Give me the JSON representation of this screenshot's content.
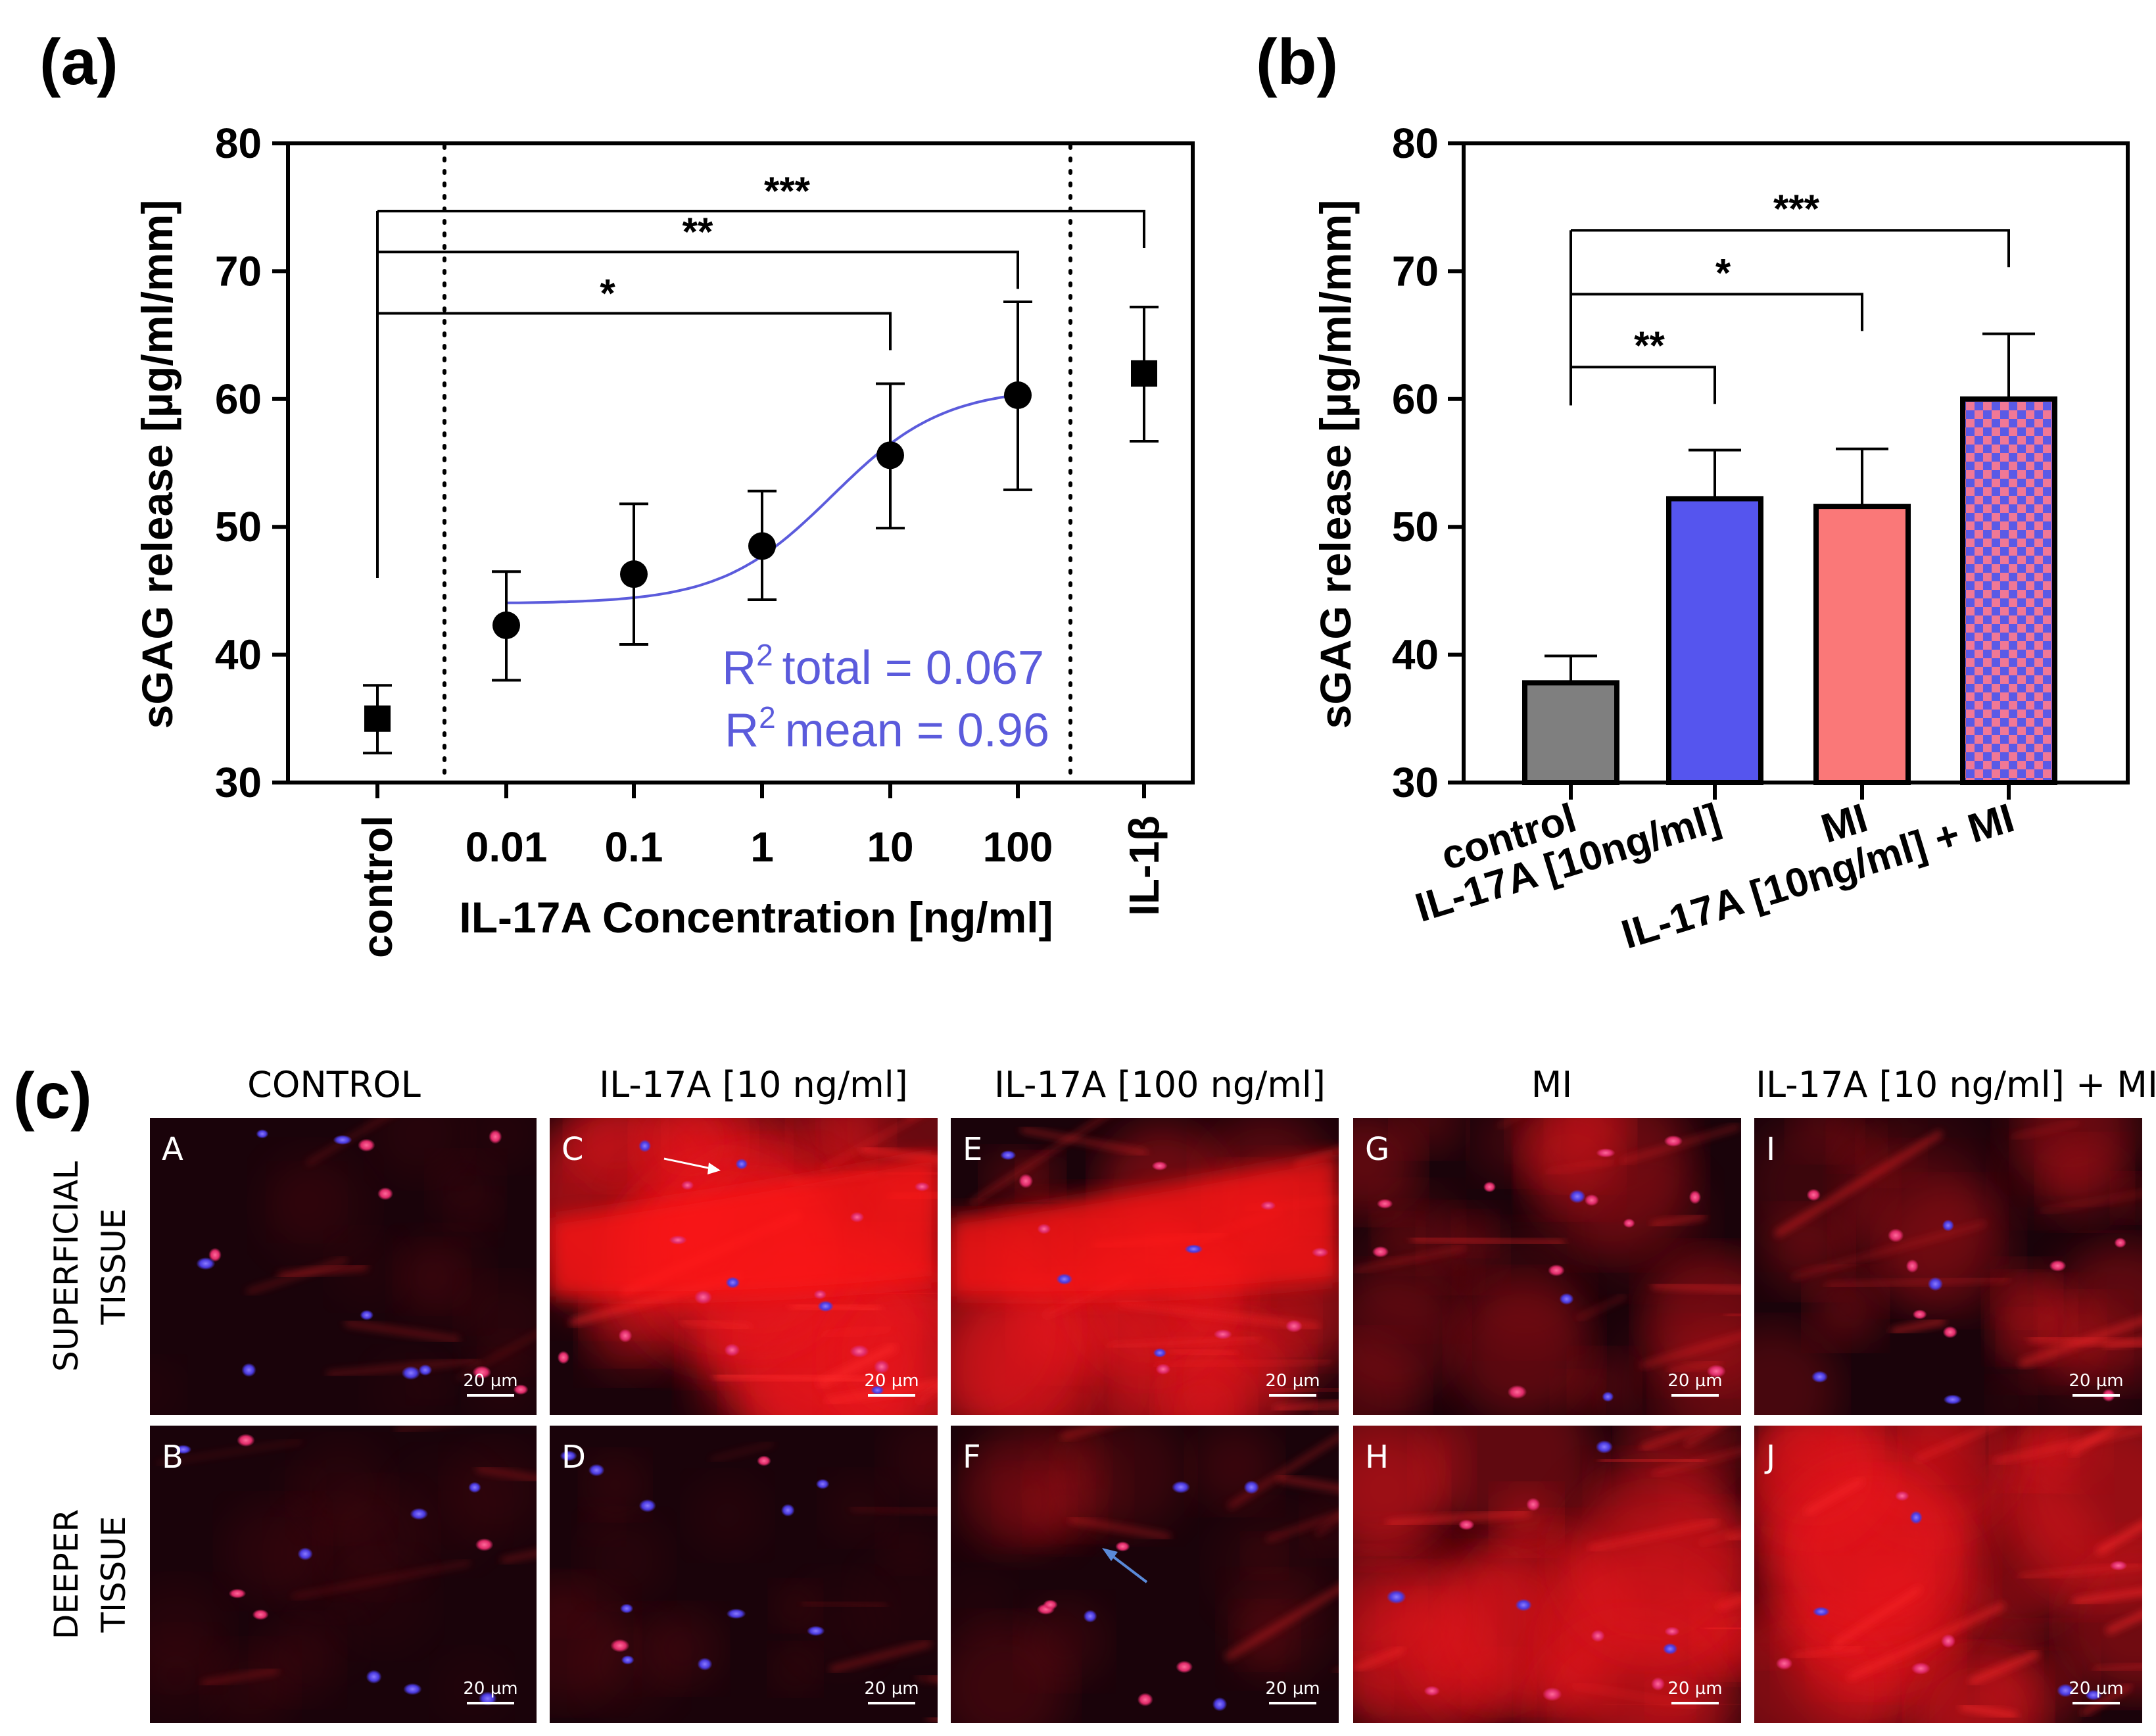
{
  "panel_a": {
    "label": "(a)",
    "r2_total": "total = 0.067",
    "r2_mean": "mean = 0.96",
    "r_symbol": "R",
    "r_sup": "2",
    "fit_color": "#5b5bdc"
  },
  "panel_b": {
    "label": "(b)"
  },
  "panel_c": {
    "label": "(c)",
    "columns": [
      "CONTROL",
      "IL-17A [10 ng/ml]",
      "IL-17A [100 ng/ml]",
      "MI",
      "IL-17A [10 ng/ml] + MI"
    ],
    "rows": [
      [
        "SUPERFICIAL",
        "TISSUE"
      ],
      [
        "DEEPER",
        "TISSUE"
      ]
    ],
    "tiles": [
      [
        {
          "letter": "A",
          "scale": "20 µm"
        },
        {
          "letter": "C",
          "scale": "20 µm"
        },
        {
          "letter": "E",
          "scale": "20 µm"
        },
        {
          "letter": "G",
          "scale": "20 µm"
        },
        {
          "letter": "I",
          "scale": "20 µm"
        }
      ],
      [
        {
          "letter": "B",
          "scale": "20 µm"
        },
        {
          "letter": "D",
          "scale": "20 µm"
        },
        {
          "letter": "F",
          "scale": "20 µm"
        },
        {
          "letter": "H",
          "scale": "20 µm"
        },
        {
          "letter": "J",
          "scale": "20 µm"
        }
      ]
    ]
  },
  "chart_data": [
    {
      "type": "scatter",
      "title": "",
      "ylabel": "sGAG release [µg/ml/mm]",
      "xlabel": "IL-17A Concentration [ng/ml]",
      "ylim": [
        30,
        80
      ],
      "yticks": [
        30,
        40,
        50,
        60,
        70,
        80
      ],
      "categories": [
        "control",
        "0.01",
        "0.1",
        "1",
        "10",
        "100",
        "IL-1β"
      ],
      "points": [
        {
          "x": "control",
          "y": 35.0,
          "err_low": 32.3,
          "err_high": 37.6,
          "marker": "square"
        },
        {
          "x": "0.01",
          "y": 42.3,
          "err_low": 38.0,
          "err_high": 46.5,
          "marker": "circle"
        },
        {
          "x": "0.1",
          "y": 46.3,
          "err_low": 40.8,
          "err_high": 51.8,
          "marker": "circle"
        },
        {
          "x": "1",
          "y": 48.5,
          "err_low": 44.3,
          "err_high": 52.8,
          "marker": "circle"
        },
        {
          "x": "10",
          "y": 55.6,
          "err_low": 49.9,
          "err_high": 61.2,
          "marker": "circle"
        },
        {
          "x": "100",
          "y": 60.3,
          "err_low": 52.9,
          "err_high": 67.6,
          "marker": "circle"
        },
        {
          "x": "IL-1β",
          "y": 62.0,
          "err_low": 56.7,
          "err_high": 67.2,
          "marker": "square"
        }
      ],
      "fit": {
        "model": "sigmoid",
        "bottom": 44.0,
        "top": 60.9,
        "log_ec50": 0.55,
        "hill": 1.0,
        "x_log_range": [
          -2,
          2
        ]
      },
      "significance": [
        {
          "from": "control",
          "to": "IL-1β",
          "label": "***",
          "y": 74.7
        },
        {
          "from": "control",
          "to": "100",
          "label": "**",
          "y": 71.5
        },
        {
          "from": "control",
          "to": "10",
          "label": "*",
          "y": 66.7
        }
      ]
    },
    {
      "type": "bar",
      "title": "",
      "ylabel": "sGAG release [µg/ml/mm]",
      "ylim": [
        30,
        80
      ],
      "yticks": [
        30,
        40,
        50,
        60,
        70,
        80
      ],
      "categories": [
        "control",
        "IL-17A [10ng/ml]",
        "MI",
        "IL-17A [10ng/ml] + MI"
      ],
      "values": [
        37.8,
        52.2,
        51.6,
        60.0
      ],
      "errors": [
        2.1,
        3.8,
        4.5,
        5.1
      ],
      "colors": [
        "#7f7f7f",
        "#5555ee",
        "#fa7878",
        "checker"
      ],
      "significance": [
        {
          "from": "control",
          "to": "IL-17A [10ng/ml] + MI",
          "label": "***",
          "y": 73.2
        },
        {
          "from": "control",
          "to": "MI",
          "label": "*",
          "y": 68.2
        },
        {
          "from": "control",
          "to": "IL-17A [10ng/ml]",
          "label": "**",
          "y": 62.5
        }
      ]
    }
  ]
}
